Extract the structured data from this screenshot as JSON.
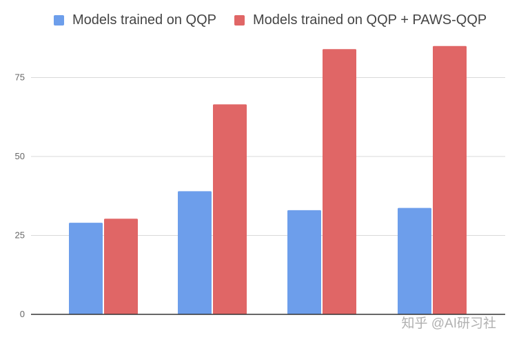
{
  "legend": {
    "series1": "Models trained on QQP",
    "series2": "Models trained on QQP + PAWS-QQP"
  },
  "watermark": "知乎 @AI研习社",
  "colors": {
    "series1": "#6d9eeb",
    "series2": "#e06666",
    "grid": "#d9d9d9",
    "axis": "#333333"
  },
  "chart_data": {
    "type": "bar",
    "categories": [
      "",
      "",
      "",
      ""
    ],
    "series": [
      {
        "name": "Models trained on QQP",
        "values": [
          29,
          39,
          33,
          33.7
        ]
      },
      {
        "name": "Models trained on QQP + PAWS-QQP",
        "values": [
          30.3,
          66.5,
          84,
          85
        ]
      }
    ],
    "yticks": [
      0,
      25,
      50,
      75
    ],
    "ylim": [
      0,
      90
    ],
    "grid": true,
    "legend_position": "top"
  }
}
